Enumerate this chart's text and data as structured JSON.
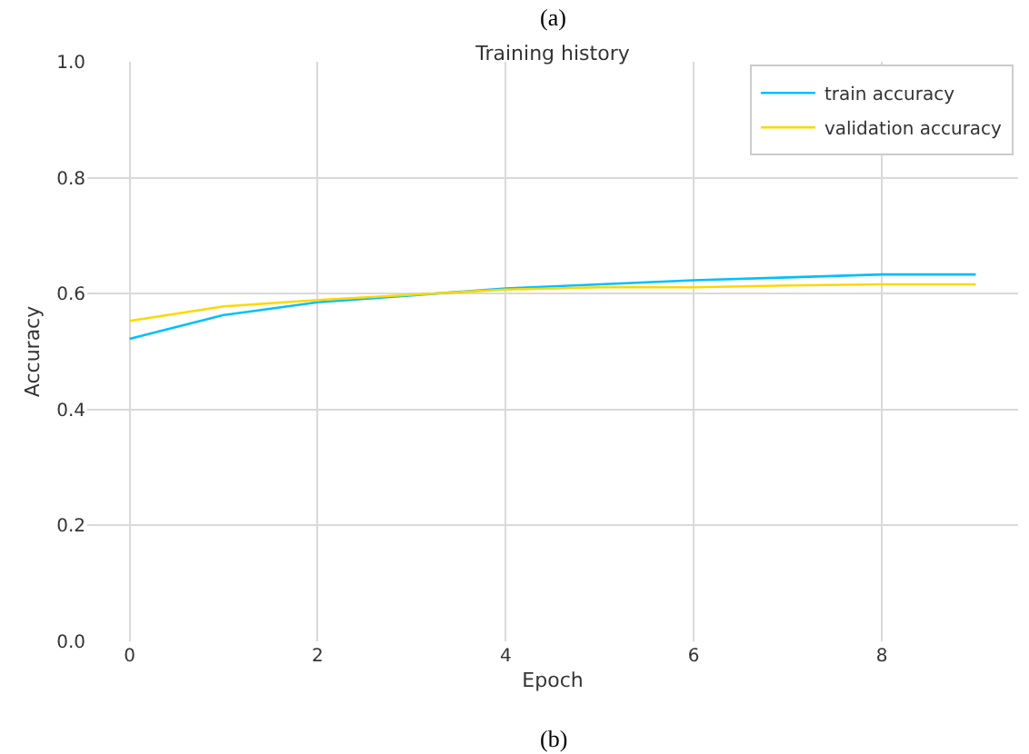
{
  "chart_data": {
    "type": "line",
    "title": "Training history",
    "xlabel": "Epoch",
    "ylabel": "Accuracy",
    "x": [
      0,
      1,
      2,
      3,
      4,
      5,
      6,
      7,
      8,
      9
    ],
    "series": [
      {
        "name": "train accuracy",
        "color": "#00bfff",
        "values": [
          0.522,
          0.563,
          0.585,
          0.597,
          0.609,
          0.616,
          0.623,
          0.628,
          0.633,
          0.633
        ]
      },
      {
        "name": "validation accuracy",
        "color": "#ffd700",
        "values": [
          0.553,
          0.578,
          0.589,
          0.598,
          0.607,
          0.611,
          0.611,
          0.614,
          0.616,
          0.616
        ]
      }
    ],
    "xlim": [
      -0.45,
      9.45
    ],
    "xticks": [
      0,
      2,
      4,
      6,
      8
    ],
    "ylim": [
      0,
      1
    ],
    "yticks": [
      {
        "value": 0,
        "label": "0.0"
      },
      {
        "value": 0.2,
        "label": "0.2"
      },
      {
        "value": 0.4,
        "label": "0.4"
      },
      {
        "value": 0.6,
        "label": "0.6"
      },
      {
        "value": 0.8,
        "label": "0.8"
      },
      {
        "value": 1,
        "label": "1.0"
      }
    ],
    "grid": true,
    "legend": "top right",
    "marker": "none",
    "line_style": "solid",
    "annotations": [
      "(a)",
      "(b)"
    ]
  }
}
